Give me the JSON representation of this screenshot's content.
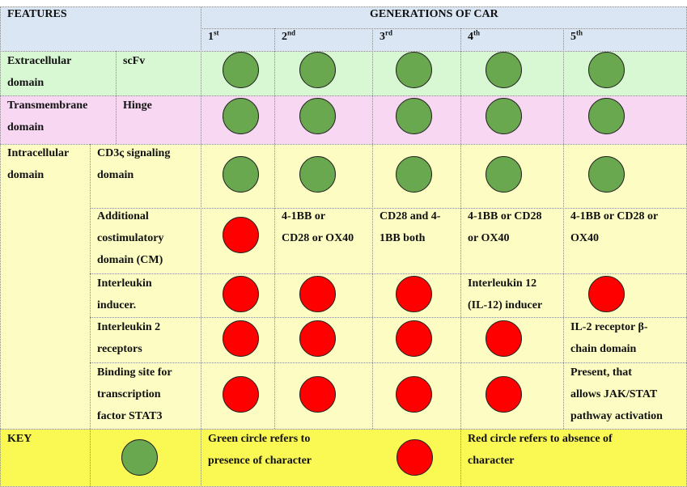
{
  "header": {
    "features": "FEATURES",
    "generations": "GENERATIONS OF CAR",
    "gens": [
      {
        "num": "1",
        "sup": "st"
      },
      {
        "num": "2",
        "sup": "nd"
      },
      {
        "num": "3",
        "sup": "rd"
      },
      {
        "num": "4",
        "sup": "th"
      },
      {
        "num": "5",
        "sup": "th"
      }
    ]
  },
  "rows": {
    "extracellular": {
      "domain_l1": "Extracellular",
      "domain_l2": "domain",
      "feature": "scFv",
      "cells": [
        "present",
        "present",
        "present",
        "present",
        "present"
      ]
    },
    "transmembrane": {
      "domain_l1": "Transmembrane",
      "domain_l2": "domain",
      "feature": "Hinge",
      "cells": [
        "present",
        "present",
        "present",
        "present",
        "present"
      ]
    },
    "intracellular": {
      "domain_l1": "Intracellular",
      "domain_l2": "domain"
    },
    "cd3": {
      "feature_l1": "CD3ς signaling",
      "feature_l2": "domain",
      "cells": [
        "present",
        "present",
        "present",
        "present",
        "present"
      ]
    },
    "costim": {
      "feature_l1": "Additional",
      "feature_l2": "costimulatory",
      "feature_l3": "domain (CM)",
      "cells": [
        "absent",
        [
          "4-1BB or",
          "CD28 or OX40"
        ],
        [
          "CD28 and 4-",
          "1BB both"
        ],
        [
          "4-1BB or CD28",
          "or OX40"
        ],
        [
          "4-1BB or CD28 or",
          "OX40"
        ]
      ]
    },
    "il_inducer": {
      "feature_l1": "Interleukin",
      "feature_l2": "inducer.",
      "cells": [
        "absent",
        "absent",
        "absent",
        [
          "Interleukin 12",
          "(IL-12) inducer"
        ],
        "absent"
      ]
    },
    "il2": {
      "feature_l1": "Interleukin 2",
      "feature_l2": "receptors",
      "cells": [
        "absent",
        "absent",
        "absent",
        "absent",
        [
          "IL-2 receptor β-",
          "chain domain"
        ]
      ]
    },
    "stat3": {
      "feature_l1": "Binding site for",
      "feature_l2": "transcription",
      "feature_l3": "factor STAT3",
      "cells": [
        "absent",
        "absent",
        "absent",
        "absent",
        [
          "Present, that",
          "allows JAK/STAT",
          "pathway activation"
        ]
      ]
    }
  },
  "key": {
    "label": "KEY",
    "green_l1": "Green circle refers to",
    "green_l2": "presence of character",
    "red_l1": "Red circle refers to absence of",
    "red_l2": "character"
  },
  "colors": {
    "present": "#6aa84f",
    "absent": "#ff0000"
  }
}
